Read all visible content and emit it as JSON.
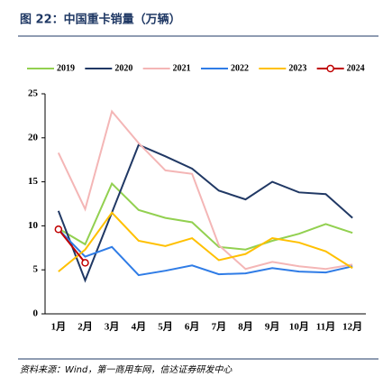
{
  "chart_data": {
    "type": "line",
    "title": "图 22：中国重卡销量（万辆）",
    "source": "资料来源：Wind，第一商用车网，信达证券研发中心",
    "categories": [
      "1月",
      "2月",
      "3月",
      "4月",
      "5月",
      "6月",
      "7月",
      "8月",
      "9月",
      "10月",
      "11月",
      "12月"
    ],
    "series": [
      {
        "name": "2019",
        "color": "#92d050",
        "values": [
          9.7,
          7.9,
          14.8,
          11.8,
          10.9,
          10.4,
          7.6,
          7.3,
          8.3,
          9.1,
          10.2,
          9.2
        ]
      },
      {
        "name": "2020",
        "color": "#203864",
        "values": [
          11.7,
          3.8,
          11.5,
          19.2,
          17.9,
          16.5,
          14.0,
          13.0,
          15.0,
          13.8,
          13.6,
          10.9
        ]
      },
      {
        "name": "2021",
        "color": "#f4b6b6",
        "values": [
          18.3,
          11.9,
          23.0,
          19.4,
          16.3,
          15.9,
          7.8,
          5.1,
          5.9,
          5.4,
          5.1,
          5.6
        ]
      },
      {
        "name": "2022",
        "color": "#2f7ce6",
        "values": [
          9.6,
          6.5,
          7.6,
          4.4,
          4.9,
          5.5,
          4.5,
          4.6,
          5.2,
          4.8,
          4.7,
          5.4
        ]
      },
      {
        "name": "2023",
        "color": "#ffc000",
        "values": [
          4.8,
          7.3,
          11.5,
          8.3,
          7.7,
          8.6,
          6.1,
          6.8,
          8.6,
          8.1,
          7.1,
          5.2
        ]
      },
      {
        "name": "2024",
        "color": "#c00000",
        "marker": "circle",
        "values": [
          9.6,
          5.8,
          null,
          null,
          null,
          null,
          null,
          null,
          null,
          null,
          null,
          null
        ]
      }
    ],
    "ylim": [
      0,
      25
    ],
    "yticks": [
      0,
      5,
      10,
      15,
      20,
      25
    ],
    "grid": false,
    "legend": "top"
  }
}
